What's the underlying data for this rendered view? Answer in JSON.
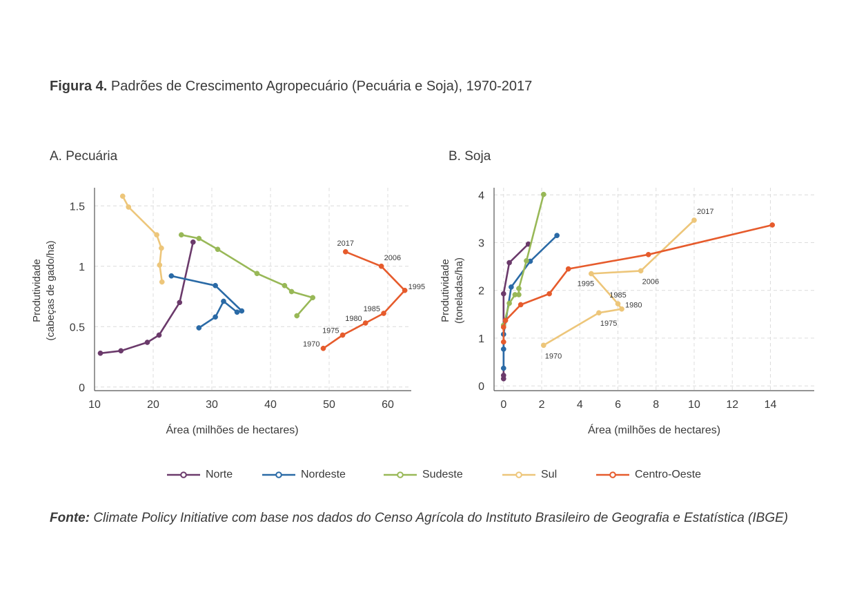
{
  "figure": {
    "title_bold": "Figura 4.",
    "title_rest": " Padrões de Crescimento Agropecuário (Pecuária e Soja), 1970-2017",
    "source_bold": "Fonte:",
    "source_rest": " Climate Policy Initiative com base nos dados do Censo Agrícola do Instituto Brasileiro de Geografia e Estatística (IBGE)"
  },
  "series_meta": [
    {
      "name": "Norte",
      "color": "#6b3a6b"
    },
    {
      "name": "Nordeste",
      "color": "#2a6aa6"
    },
    {
      "name": "Sudeste",
      "color": "#98b857"
    },
    {
      "name": "Sul",
      "color": "#edc67a"
    },
    {
      "name": "Centro-Oeste",
      "color": "#e65b2c"
    }
  ],
  "chart_data": [
    {
      "type": "line",
      "title": "A. Pecuária",
      "xlabel": "Área (milhões de hectares)",
      "ylabel": [
        "Produtividade",
        "(cabeças de gado/ha)"
      ],
      "xlim": [
        10,
        64
      ],
      "ylim": [
        -0.03,
        1.65
      ],
      "xticks": [
        10,
        20,
        30,
        40,
        50,
        60
      ],
      "yticks": [
        0,
        0.5,
        1,
        1.5
      ],
      "ytick_labels": [
        "0",
        "0.5",
        "1",
        "1.5"
      ],
      "grid": true,
      "series": [
        {
          "name": "Norte",
          "x": [
            11.0,
            14.5,
            19.0,
            21.0,
            24.5,
            26.8
          ],
          "y": [
            0.28,
            0.3,
            0.37,
            0.43,
            0.7,
            1.2
          ]
        },
        {
          "name": "Nordeste",
          "x": [
            27.8,
            30.6,
            32.0,
            34.3,
            35.1,
            30.6,
            23.1
          ],
          "y": [
            0.49,
            0.58,
            0.71,
            0.62,
            0.63,
            0.84,
            0.92
          ]
        },
        {
          "name": "Sudeste",
          "x": [
            44.5,
            47.2,
            43.6,
            42.4,
            37.7,
            31.0,
            27.8,
            24.8
          ],
          "y": [
            0.59,
            0.74,
            0.79,
            0.84,
            0.94,
            1.14,
            1.23,
            1.26
          ]
        },
        {
          "name": "Sul",
          "x": [
            21.5,
            21.1,
            21.4,
            20.6,
            15.8,
            14.8
          ],
          "y": [
            0.87,
            1.01,
            1.15,
            1.26,
            1.49,
            1.58
          ]
        },
        {
          "name": "Centro-Oeste",
          "x": [
            49.0,
            52.3,
            56.2,
            59.3,
            62.9,
            58.9,
            52.8
          ],
          "y": [
            0.32,
            0.43,
            0.53,
            0.61,
            0.8,
            1.0,
            1.12
          ]
        }
      ],
      "annotations": [
        {
          "text": "1970",
          "x": 49.0,
          "y": 0.32,
          "align": "left"
        },
        {
          "text": "1975",
          "x": 52.3,
          "y": 0.43,
          "align": "left"
        },
        {
          "text": "1980",
          "x": 56.2,
          "y": 0.53,
          "align": "left"
        },
        {
          "text": "1985",
          "x": 59.3,
          "y": 0.61,
          "align": "left"
        },
        {
          "text": "1995",
          "x": 62.9,
          "y": 0.8,
          "align": "right"
        },
        {
          "text": "2006",
          "x": 58.9,
          "y": 1.0,
          "align": "above-right"
        },
        {
          "text": "2017",
          "x": 52.8,
          "y": 1.12,
          "align": "above"
        }
      ]
    },
    {
      "type": "line",
      "title": "B. Soja",
      "xlabel": "Área (milhões de hectares)",
      "ylabel": [
        "Produtividade",
        "(toneladas/ha)"
      ],
      "xlim": [
        -0.5,
        16.3
      ],
      "ylim": [
        -0.1,
        4.15
      ],
      "xticks": [
        0,
        2,
        4,
        6,
        8,
        10,
        12,
        14
      ],
      "yticks": [
        0,
        1,
        2,
        3,
        4
      ],
      "ytick_labels": [
        "0",
        "1",
        "2",
        "3",
        "4"
      ],
      "grid": true,
      "series": [
        {
          "name": "Norte",
          "x": [
            0.0,
            0.0,
            0.0,
            0.3,
            1.3
          ],
          "y": [
            0.15,
            0.22,
            1.93,
            2.58,
            2.97
          ]
        },
        {
          "name": "Nordeste",
          "x": [
            0.0,
            0.0,
            0.0,
            0.4,
            1.4,
            2.8
          ],
          "y": [
            0.37,
            0.77,
            1.08,
            2.07,
            2.61,
            3.15
          ]
        },
        {
          "name": "Sudeste",
          "x": [
            0.0,
            0.3,
            0.6,
            0.8,
            0.8,
            1.2,
            2.1
          ],
          "y": [
            1.27,
            1.73,
            1.91,
            1.91,
            2.04,
            2.62,
            4.01
          ]
        },
        {
          "name": "Sul",
          "x": [
            2.1,
            5.0,
            6.2,
            6.0,
            4.6,
            7.2,
            10.0
          ],
          "y": [
            0.85,
            1.53,
            1.61,
            1.72,
            2.35,
            2.41,
            3.47
          ]
        },
        {
          "name": "Centro-Oeste",
          "x": [
            0.0,
            0.0,
            0.1,
            0.9,
            2.4,
            3.4,
            7.6,
            14.1
          ],
          "y": [
            0.92,
            1.23,
            1.37,
            1.7,
            1.93,
            2.45,
            2.75,
            3.37
          ]
        }
      ],
      "annotations": [
        {
          "text": "1970",
          "x": 2.1,
          "y": 0.85,
          "align": "below"
        },
        {
          "text": "1975",
          "x": 5.0,
          "y": 1.53,
          "align": "below"
        },
        {
          "text": "1980",
          "x": 6.2,
          "y": 1.61,
          "align": "right"
        },
        {
          "text": "1985",
          "x": 6.0,
          "y": 1.72,
          "align": "above"
        },
        {
          "text": "1995",
          "x": 4.6,
          "y": 2.35,
          "align": "below-left"
        },
        {
          "text": "2006",
          "x": 7.2,
          "y": 2.41,
          "align": "below"
        },
        {
          "text": "2017",
          "x": 10.0,
          "y": 3.47,
          "align": "above-right"
        }
      ]
    }
  ]
}
